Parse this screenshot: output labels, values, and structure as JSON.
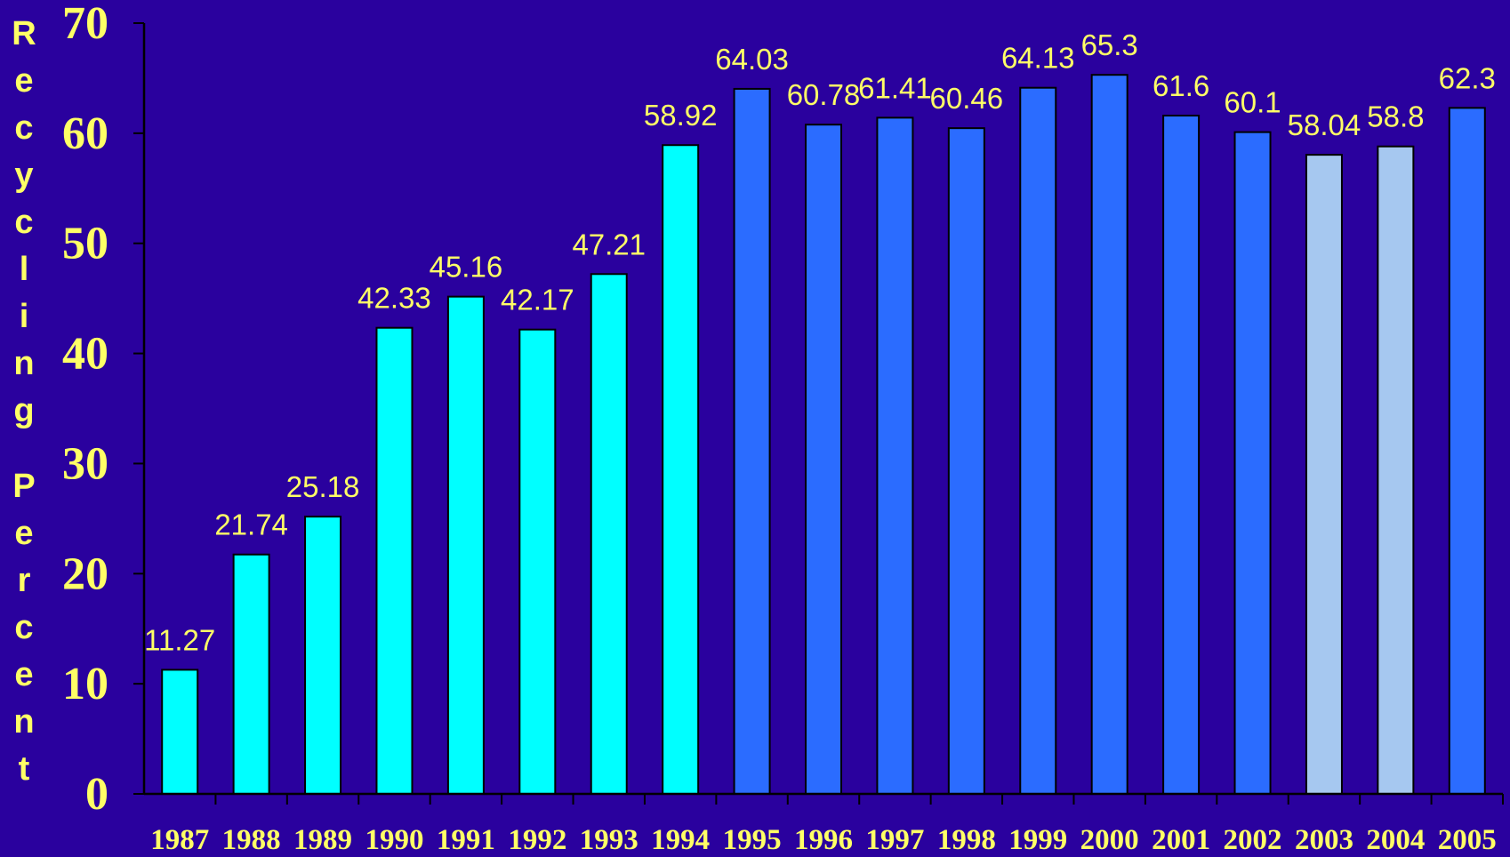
{
  "chart_data": {
    "type": "bar",
    "title": "",
    "xlabel": "",
    "ylabel": "Recycling Percent",
    "ylim": [
      0,
      70
    ],
    "yticks": [
      0,
      10,
      20,
      30,
      40,
      50,
      60,
      70
    ],
    "grid": false,
    "legend": "none",
    "categories": [
      "1987",
      "1988",
      "1989",
      "1990",
      "1991",
      "1992",
      "1993",
      "1994",
      "1995",
      "1996",
      "1997",
      "1998",
      "1999",
      "2000",
      "2001",
      "2002",
      "2003",
      "2004",
      "2005"
    ],
    "values": [
      11.27,
      21.74,
      25.18,
      42.33,
      45.16,
      42.17,
      47.21,
      58.92,
      64.03,
      60.78,
      61.41,
      60.46,
      64.13,
      65.3,
      61.6,
      60.1,
      58.04,
      58.8,
      62.3
    ],
    "data_labels": [
      "11.27",
      "21.74",
      "25.18",
      "42.33",
      "45.16",
      "42.17",
      "47.21",
      "58.92",
      "64.03",
      "60.78",
      "61.41",
      "60.46",
      "64.13",
      "65.3",
      "61.6",
      "60.1",
      "58.04",
      "58.8",
      "62.3"
    ],
    "bar_colors": [
      "#00ffff",
      "#00ffff",
      "#00ffff",
      "#00ffff",
      "#00ffff",
      "#00ffff",
      "#00ffff",
      "#00ffff",
      "#2b6cff",
      "#2b6cff",
      "#2b6cff",
      "#2b6cff",
      "#2b6cff",
      "#2b6cff",
      "#2b6cff",
      "#2b6cff",
      "#a6c8f0",
      "#a6c8f0",
      "#2b6cff"
    ],
    "colors": {
      "background": "#2a019e",
      "text": "#ffff66",
      "axis": "#000000"
    }
  }
}
